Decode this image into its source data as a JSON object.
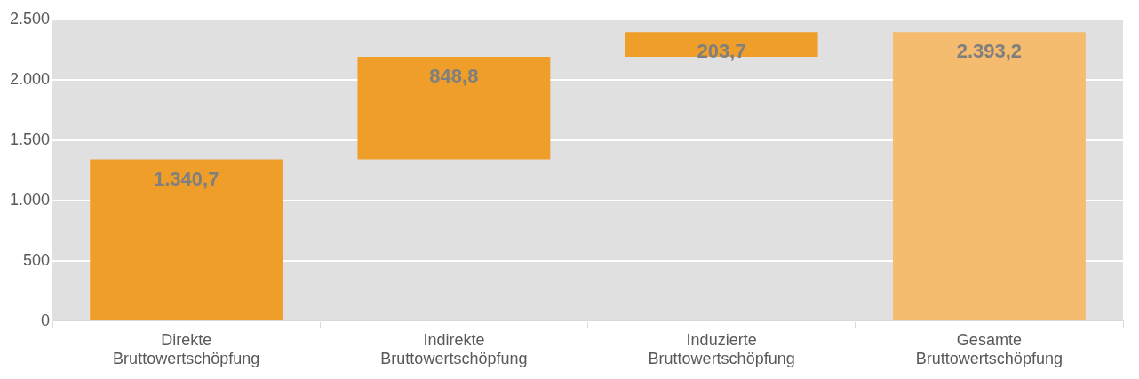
{
  "chart_data": {
    "type": "bar",
    "categories": [
      "Direkte Bruttowertschöpfung",
      "Indirekte Bruttowertschöpfung",
      "Induzierte Bruttowertschöpfung",
      "Gesamte Bruttowertschöpfung"
    ],
    "values": [
      1340.7,
      848.8,
      203.7,
      2393.2
    ],
    "base": [
      0,
      1340.7,
      2189.5,
      0
    ],
    "colors": [
      "#f09e2a",
      "#f09e2a",
      "#f09e2a",
      "#f5bb6e"
    ],
    "value_labels": [
      "1.340,7",
      "848,8",
      "203,7",
      "2.393,2"
    ],
    "ylim": [
      0,
      2500
    ],
    "yticks": [
      {
        "value": 0,
        "label": "0"
      },
      {
        "value": 500,
        "label": "500"
      },
      {
        "value": 1000,
        "label": "1.000"
      },
      {
        "value": 1500,
        "label": "1.500"
      },
      {
        "value": 2000,
        "label": "2.000"
      },
      {
        "value": 2500,
        "label": "2.500"
      }
    ],
    "grid": "y",
    "legend": false
  }
}
